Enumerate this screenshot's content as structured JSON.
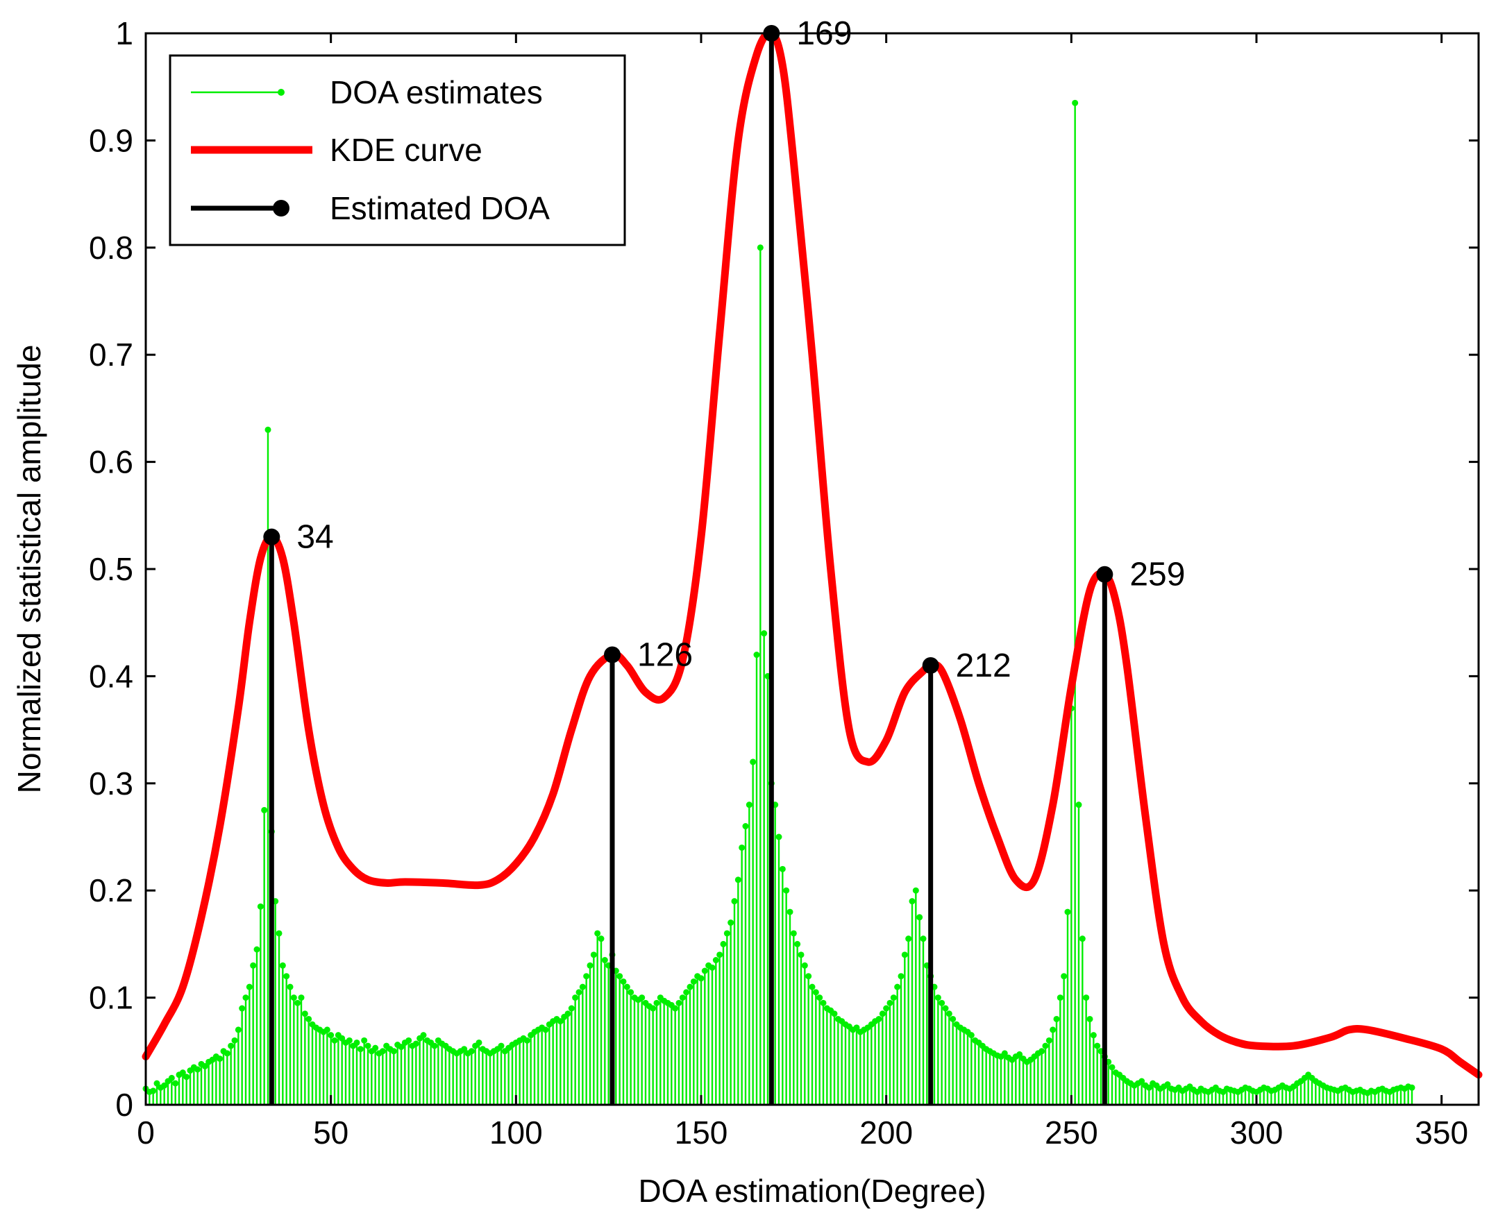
{
  "chart_data": {
    "type": "line",
    "title": "",
    "xlabel": "DOA estimation(Degree)",
    "ylabel": "Normalized statistical amplitude",
    "xlim": [
      0,
      360
    ],
    "ylim": [
      0,
      1
    ],
    "xticks": [
      0,
      50,
      100,
      150,
      200,
      250,
      300,
      350
    ],
    "yticks": [
      0,
      0.1,
      0.2,
      0.3,
      0.4,
      0.5,
      0.6,
      0.7,
      0.8,
      0.9,
      1
    ],
    "ytick_labels": [
      "0",
      "0.1",
      "0.2",
      "0.3",
      "0.4",
      "0.5",
      "0.6",
      "0.7",
      "0.8",
      "0.9",
      "1"
    ],
    "grid": false,
    "legend_position": "top-left",
    "legend": [
      {
        "label": "DOA estimates",
        "style": "green-stem"
      },
      {
        "label": "KDE curve",
        "style": "red-thick-line"
      },
      {
        "label": "Estimated DOA",
        "style": "black-stem-dot"
      }
    ],
    "colors": {
      "doa_estimates": "#00ee00",
      "kde_curve": "#ff0000",
      "estimated_doa": "#000000"
    },
    "kde_curve": {
      "x": [
        0,
        5,
        10,
        15,
        20,
        25,
        28,
        31,
        34,
        37,
        40,
        44,
        48,
        52,
        56,
        60,
        65,
        70,
        80,
        90,
        95,
        100,
        105,
        110,
        115,
        120,
        126,
        130,
        135,
        140,
        145,
        150,
        155,
        160,
        165,
        169,
        172,
        175,
        180,
        185,
        190,
        195,
        200,
        205,
        210,
        212,
        215,
        220,
        225,
        230,
        235,
        240,
        245,
        250,
        255,
        259,
        262,
        265,
        270,
        275,
        280,
        285,
        290,
        295,
        300,
        310,
        320,
        325,
        330,
        340,
        350,
        355,
        360
      ],
      "y": [
        0.045,
        0.075,
        0.11,
        0.175,
        0.26,
        0.37,
        0.45,
        0.51,
        0.53,
        0.51,
        0.45,
        0.35,
        0.28,
        0.24,
        0.22,
        0.21,
        0.207,
        0.208,
        0.207,
        0.205,
        0.21,
        0.225,
        0.25,
        0.29,
        0.35,
        0.4,
        0.42,
        0.41,
        0.385,
        0.38,
        0.415,
        0.53,
        0.72,
        0.9,
        0.98,
        1.0,
        0.97,
        0.88,
        0.7,
        0.5,
        0.35,
        0.32,
        0.34,
        0.385,
        0.405,
        0.41,
        0.405,
        0.36,
        0.3,
        0.25,
        0.21,
        0.21,
        0.28,
        0.39,
        0.48,
        0.495,
        0.47,
        0.41,
        0.27,
        0.15,
        0.1,
        0.078,
        0.065,
        0.058,
        0.055,
        0.055,
        0.063,
        0.07,
        0.07,
        0.062,
        0.052,
        0.04,
        0.028
      ]
    },
    "doa_estimates": {
      "step": 1,
      "x_start": 0,
      "y": [
        0.015,
        0.012,
        0.013,
        0.02,
        0.016,
        0.018,
        0.022,
        0.025,
        0.02,
        0.028,
        0.03,
        0.026,
        0.032,
        0.035,
        0.033,
        0.038,
        0.036,
        0.04,
        0.042,
        0.045,
        0.043,
        0.05,
        0.048,
        0.055,
        0.06,
        0.07,
        0.09,
        0.1,
        0.11,
        0.13,
        0.145,
        0.185,
        0.275,
        0.63,
        0.255,
        0.19,
        0.16,
        0.13,
        0.12,
        0.11,
        0.1,
        0.095,
        0.1,
        0.085,
        0.08,
        0.075,
        0.072,
        0.07,
        0.068,
        0.07,
        0.065,
        0.06,
        0.065,
        0.062,
        0.058,
        0.06,
        0.055,
        0.058,
        0.052,
        0.06,
        0.055,
        0.05,
        0.053,
        0.048,
        0.05,
        0.055,
        0.052,
        0.05,
        0.056,
        0.054,
        0.058,
        0.06,
        0.055,
        0.057,
        0.062,
        0.065,
        0.06,
        0.058,
        0.055,
        0.06,
        0.057,
        0.055,
        0.052,
        0.05,
        0.048,
        0.05,
        0.052,
        0.048,
        0.05,
        0.055,
        0.058,
        0.052,
        0.05,
        0.048,
        0.05,
        0.052,
        0.055,
        0.05,
        0.053,
        0.056,
        0.058,
        0.06,
        0.062,
        0.06,
        0.065,
        0.068,
        0.07,
        0.072,
        0.07,
        0.075,
        0.078,
        0.08,
        0.078,
        0.082,
        0.085,
        0.09,
        0.1,
        0.105,
        0.11,
        0.12,
        0.13,
        0.14,
        0.16,
        0.155,
        0.135,
        0.13,
        0.14,
        0.125,
        0.12,
        0.115,
        0.11,
        0.105,
        0.1,
        0.098,
        0.1,
        0.095,
        0.092,
        0.09,
        0.095,
        0.1,
        0.097,
        0.095,
        0.093,
        0.09,
        0.095,
        0.1,
        0.105,
        0.11,
        0.115,
        0.12,
        0.118,
        0.125,
        0.13,
        0.128,
        0.135,
        0.14,
        0.15,
        0.16,
        0.17,
        0.19,
        0.21,
        0.24,
        0.26,
        0.28,
        0.32,
        0.42,
        0.8,
        0.44,
        0.4,
        0.3,
        0.28,
        0.25,
        0.22,
        0.2,
        0.18,
        0.16,
        0.15,
        0.14,
        0.13,
        0.12,
        0.11,
        0.105,
        0.1,
        0.095,
        0.09,
        0.088,
        0.085,
        0.08,
        0.078,
        0.075,
        0.073,
        0.07,
        0.072,
        0.068,
        0.07,
        0.072,
        0.075,
        0.078,
        0.08,
        0.085,
        0.09,
        0.095,
        0.1,
        0.11,
        0.12,
        0.14,
        0.155,
        0.19,
        0.2,
        0.175,
        0.155,
        0.13,
        0.12,
        0.11,
        0.1,
        0.095,
        0.09,
        0.085,
        0.08,
        0.075,
        0.072,
        0.07,
        0.068,
        0.065,
        0.06,
        0.058,
        0.055,
        0.052,
        0.05,
        0.048,
        0.046,
        0.045,
        0.048,
        0.044,
        0.042,
        0.045,
        0.047,
        0.043,
        0.04,
        0.042,
        0.045,
        0.048,
        0.05,
        0.055,
        0.06,
        0.07,
        0.08,
        0.1,
        0.12,
        0.18,
        0.37,
        0.935,
        0.28,
        0.155,
        0.1,
        0.08,
        0.065,
        0.055,
        0.05,
        0.045,
        0.04,
        0.035,
        0.03,
        0.028,
        0.025,
        0.022,
        0.02,
        0.018,
        0.02,
        0.022,
        0.018,
        0.016,
        0.02,
        0.018,
        0.015,
        0.017,
        0.019,
        0.015,
        0.014,
        0.016,
        0.013,
        0.015,
        0.017,
        0.014,
        0.012,
        0.015,
        0.013,
        0.012,
        0.014,
        0.016,
        0.013,
        0.012,
        0.015,
        0.014,
        0.013,
        0.012,
        0.014,
        0.016,
        0.015,
        0.013,
        0.012,
        0.014,
        0.016,
        0.015,
        0.013,
        0.014,
        0.016,
        0.018,
        0.016,
        0.015,
        0.017,
        0.02,
        0.022,
        0.025,
        0.028,
        0.025,
        0.022,
        0.02,
        0.018,
        0.016,
        0.015,
        0.014,
        0.013,
        0.015,
        0.016,
        0.014,
        0.012,
        0.013,
        0.014,
        0.012,
        0.011,
        0.013,
        0.012,
        0.014,
        0.015,
        0.013,
        0.012,
        0.014,
        0.015,
        0.016,
        0.015,
        0.017,
        0.016
      ]
    },
    "estimated_doa": [
      {
        "angle": 34,
        "amplitude": 0.53,
        "label": "34"
      },
      {
        "angle": 126,
        "amplitude": 0.42,
        "label": "126"
      },
      {
        "angle": 169,
        "amplitude": 1.0,
        "label": "169"
      },
      {
        "angle": 212,
        "amplitude": 0.41,
        "label": "212"
      },
      {
        "angle": 259,
        "amplitude": 0.495,
        "label": "259"
      }
    ]
  }
}
